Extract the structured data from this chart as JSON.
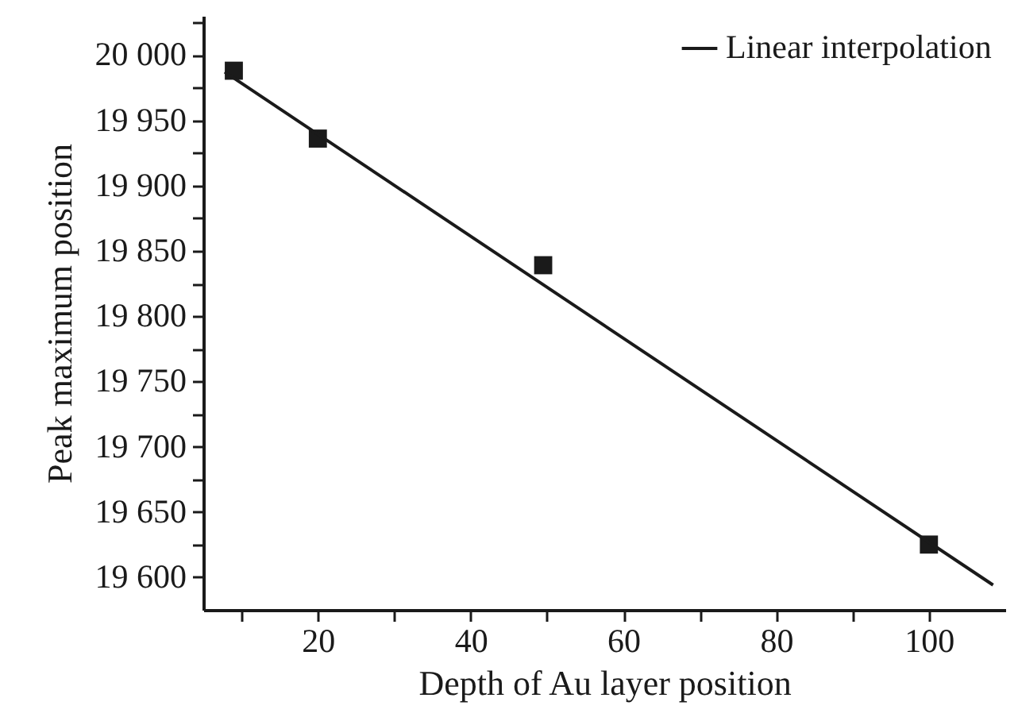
{
  "chart_data": {
    "type": "scatter",
    "xlabel": "Depth of Au layer position",
    "ylabel": "Peak maximum position",
    "xlim": [
      5,
      110
    ],
    "ylim": [
      19575,
      20030
    ],
    "xticks": [
      {
        "value": 10,
        "label": null
      },
      20,
      {
        "value": 30,
        "label": null
      },
      40,
      {
        "value": 50,
        "label": null
      },
      60,
      {
        "value": 70,
        "label": null
      },
      80,
      {
        "value": 90,
        "label": null
      },
      100
    ],
    "yticks": [
      {
        "value": 19600,
        "label": "19 600"
      },
      {
        "value": 19625,
        "label": null
      },
      {
        "value": 19650,
        "label": "19 650"
      },
      {
        "value": 19675,
        "label": null
      },
      {
        "value": 19700,
        "label": "19 700"
      },
      {
        "value": 19725,
        "label": null
      },
      {
        "value": 19750,
        "label": "19 750"
      },
      {
        "value": 19775,
        "label": null
      },
      {
        "value": 19800,
        "label": "19 800"
      },
      {
        "value": 19825,
        "label": null
      },
      {
        "value": 19850,
        "label": "19 850"
      },
      {
        "value": 19875,
        "label": null
      },
      {
        "value": 19900,
        "label": "19 900"
      },
      {
        "value": 19925,
        "label": null
      },
      {
        "value": 19950,
        "label": "19 950"
      },
      {
        "value": 19975,
        "label": null
      },
      {
        "value": 20000,
        "label": "20 000"
      },
      {
        "value": 20025,
        "label": null
      }
    ],
    "grid": false,
    "legend": "top right",
    "series": [
      {
        "marker": "square",
        "color": "#1a1a1a",
        "x": [
          9,
          20,
          49.5,
          100
        ],
        "values": [
          19988,
          19936,
          19839,
          19625
        ]
      },
      {
        "type": "line",
        "marker": "none",
        "name": "Linear interpolation",
        "color": "#1a1a1a",
        "x": [
          7.8,
          108.4
        ],
        "values": [
          19987,
          19594
        ]
      }
    ]
  }
}
